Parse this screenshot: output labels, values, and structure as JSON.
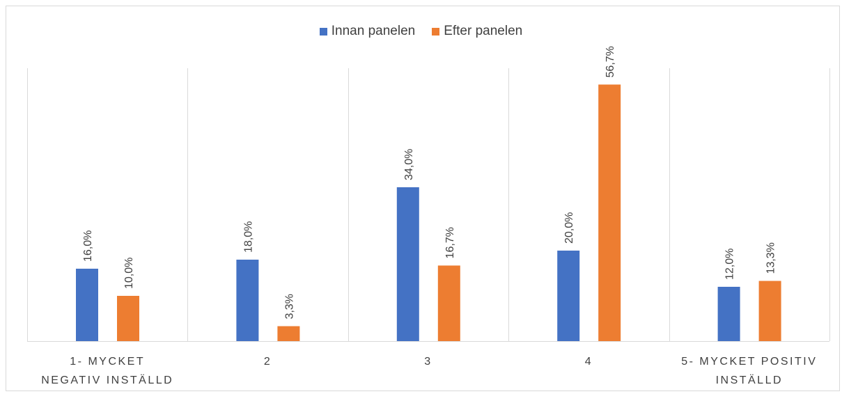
{
  "chart_data": {
    "type": "bar",
    "title": "",
    "xlabel": "",
    "ylabel": "",
    "ylim": [
      0,
      60
    ],
    "grid": "vertical category separators",
    "legend_position": "top",
    "categories": [
      [
        "1- MYCKET",
        "NEGATIV INSTÄLLD"
      ],
      [
        "2"
      ],
      [
        "3"
      ],
      [
        "4"
      ],
      [
        "5- MYCKET POSITIV",
        "INSTÄLLD"
      ]
    ],
    "series": [
      {
        "name": "Innan panelen",
        "color": "#4472C4",
        "values": [
          16.0,
          18.0,
          34.0,
          20.0,
          12.0
        ],
        "labels": [
          "16,0%",
          "18,0%",
          "34,0%",
          "20,0%",
          "12,0%"
        ]
      },
      {
        "name": "Efter panelen",
        "color": "#ED7D31",
        "values": [
          10.0,
          3.3,
          16.7,
          56.7,
          13.3
        ],
        "labels": [
          "10,0%",
          "3,3%",
          "16,7%",
          "56,7%",
          "13,3%"
        ]
      }
    ]
  }
}
